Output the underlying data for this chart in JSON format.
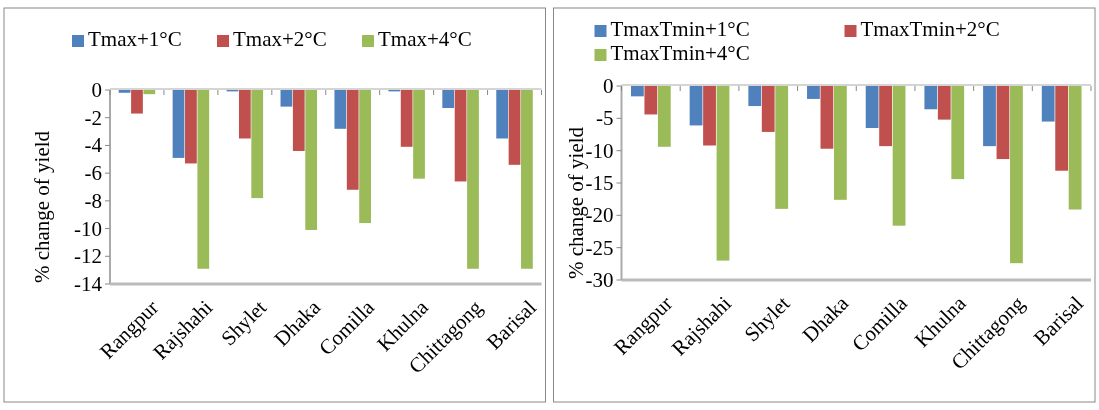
{
  "chart_data": [
    {
      "type": "bar",
      "ylabel": "% change of yield",
      "categories": [
        "Rangpur",
        "Rajshahi",
        "Shylet",
        "Dhaka",
        "Comilla",
        "Khulna",
        "Chittagong",
        "Barisal"
      ],
      "series": [
        {
          "name": "Tmax+1°C",
          "color": "#4f81bd",
          "values": [
            -0.2,
            -4.9,
            -0.1,
            -1.2,
            -2.8,
            -0.1,
            -1.3,
            -3.5
          ]
        },
        {
          "name": "Tmax+2°C",
          "color": "#c0504d",
          "values": [
            -1.7,
            -5.3,
            -3.5,
            -4.4,
            -7.2,
            -4.1,
            -6.6,
            -5.4
          ]
        },
        {
          "name": "Tmax+4°C",
          "color": "#9bbb59",
          "values": [
            -0.3,
            -12.9,
            -7.8,
            -10.1,
            -9.6,
            -6.4,
            -12.9,
            -12.9
          ]
        }
      ],
      "ylim": [
        -14,
        0
      ],
      "yticks": [
        0,
        -2,
        -4,
        -6,
        -8,
        -10,
        -12,
        -14
      ],
      "grid": false,
      "legend": "top"
    },
    {
      "type": "bar",
      "ylabel": "% change of yield",
      "categories": [
        "Rangpur",
        "Rajshahi",
        "Shylet",
        "Dhaka",
        "Comilla",
        "Khulna",
        "Chittagong",
        "Barisal"
      ],
      "series": [
        {
          "name": "TmaxTmin+1°C",
          "color": "#4f81bd",
          "values": [
            -1.6,
            -6.1,
            -3.1,
            -2.0,
            -6.5,
            -3.6,
            -9.3,
            -5.5
          ]
        },
        {
          "name": "TmaxTmin+2°C",
          "color": "#c0504d",
          "values": [
            -4.4,
            -9.2,
            -7.1,
            -9.7,
            -9.3,
            -5.2,
            -11.3,
            -13.1
          ]
        },
        {
          "name": "TmaxTmin+4°C",
          "color": "#9bbb59",
          "values": [
            -9.4,
            -27,
            -19,
            -17.6,
            -21.6,
            -14.4,
            -27.4,
            -19.1
          ]
        }
      ],
      "ylim": [
        -30,
        0
      ],
      "yticks": [
        0,
        -5,
        -10,
        -15,
        -20,
        -25,
        -30
      ],
      "grid": false,
      "legend": "top"
    }
  ]
}
